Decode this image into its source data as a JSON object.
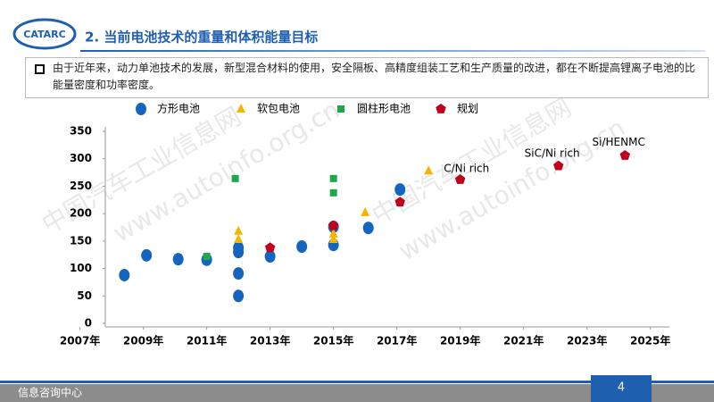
{
  "header": {
    "logo": "CATARC",
    "title": "2. 当前电池技术的重量和体积能量目标"
  },
  "bullet": "由于近年来，动力单池技术的发展，新型混合材料的使用，安全隔板、高精度组装工艺和生产质量的改进，都在不断提高锂离子电池的比能量密度和功率密度。",
  "watermark": {
    "cn": "中国汽车工业信息网",
    "url": "www.autoinfo.org.cn"
  },
  "chart_data": {
    "type": "scatter",
    "legend": "top",
    "xlim": [
      2007.8,
      2025.6
    ],
    "ylim": [
      0,
      350
    ],
    "xticks": [
      {
        "value": 2007,
        "label": "2007年"
      },
      {
        "value": 2009,
        "label": "2009年"
      },
      {
        "value": 2011,
        "label": "2011年"
      },
      {
        "value": 2013,
        "label": "2013年"
      },
      {
        "value": 2015,
        "label": "2015年"
      },
      {
        "value": 2017,
        "label": "2017年"
      },
      {
        "value": 2019,
        "label": "2019年"
      },
      {
        "value": 2021,
        "label": "2021年"
      },
      {
        "value": 2023,
        "label": "2023年"
      },
      {
        "value": 2025,
        "label": "2025年"
      }
    ],
    "yticks": [
      0,
      50,
      100,
      150,
      200,
      250,
      300,
      350
    ],
    "series": [
      {
        "name": "方形电池",
        "color": "#1565c0",
        "marker": "circle",
        "x": [
          2008.4,
          2009.1,
          2010.1,
          2011,
          2012,
          2012,
          2012,
          2012,
          2013,
          2014,
          2015,
          2015,
          2016.1,
          2017.1
        ],
        "values": [
          88,
          124,
          117,
          116,
          138,
          130,
          91,
          50,
          122,
          140,
          176,
          143,
          174,
          244
        ]
      },
      {
        "name": "软包电池",
        "color": "#f5b400",
        "marker": "triangle",
        "x": [
          2012,
          2012,
          2015,
          2015,
          2016,
          2018
        ],
        "values": [
          168,
          153,
          163,
          153,
          202,
          278
        ]
      },
      {
        "name": "圆柱形电池",
        "color": "#1ea84a",
        "marker": "square",
        "x": [
          2011.9,
          2011,
          2015,
          2015
        ],
        "values": [
          264,
          122,
          264,
          238
        ]
      },
      {
        "name": "规划",
        "color": "#c0001a",
        "marker": "pentagon",
        "x": [
          2013,
          2015,
          2017.1,
          2019,
          2022.1,
          2024.2
        ],
        "values": [
          138,
          178,
          221,
          262,
          287,
          306
        ]
      }
    ],
    "annotations": [
      {
        "text": "C/Ni rich",
        "x": 2019.2,
        "y": 282
      },
      {
        "text": "SiC/Ni rich",
        "x": 2021.9,
        "y": 309
      },
      {
        "text": "Si/HENMC",
        "x": 2024,
        "y": 330
      }
    ]
  },
  "footer": {
    "text": "信息咨询中心",
    "page": "4"
  }
}
